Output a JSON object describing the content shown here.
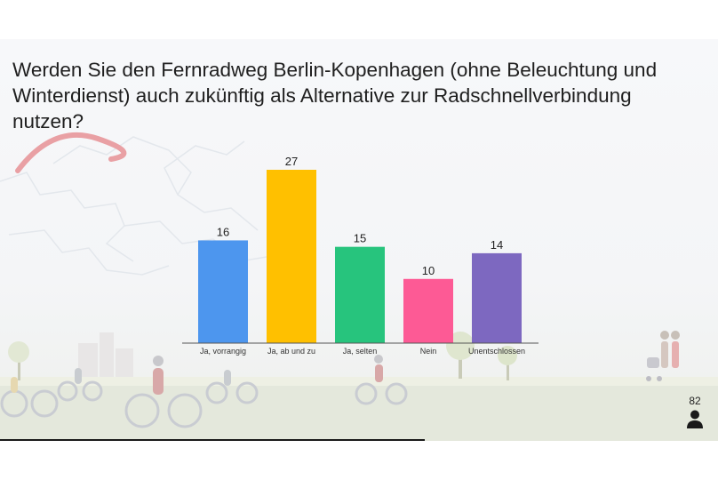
{
  "question": "Werden Sie den Fernradweg Berlin-Kopenhagen (ohne Beleuchtung und Winterdienst) auch zukünftig als Alternative zur Radschnellverbindung nutzen?",
  "respondents": "82",
  "respondent_icon": "person-icon",
  "chart_data": {
    "type": "bar",
    "categories": [
      "Ja, vorrangig",
      "Ja, ab und zu",
      "Ja, selten",
      "Nein",
      "Unentschlossen"
    ],
    "values": [
      16,
      27,
      15,
      10,
      14
    ],
    "colors": [
      "#4d96ee",
      "#ffc000",
      "#27c47d",
      "#fd5a95",
      "#7d68c0"
    ],
    "title": "",
    "xlabel": "",
    "ylabel": "",
    "ylim": [
      0,
      27
    ],
    "grid": false,
    "legend": "none"
  }
}
